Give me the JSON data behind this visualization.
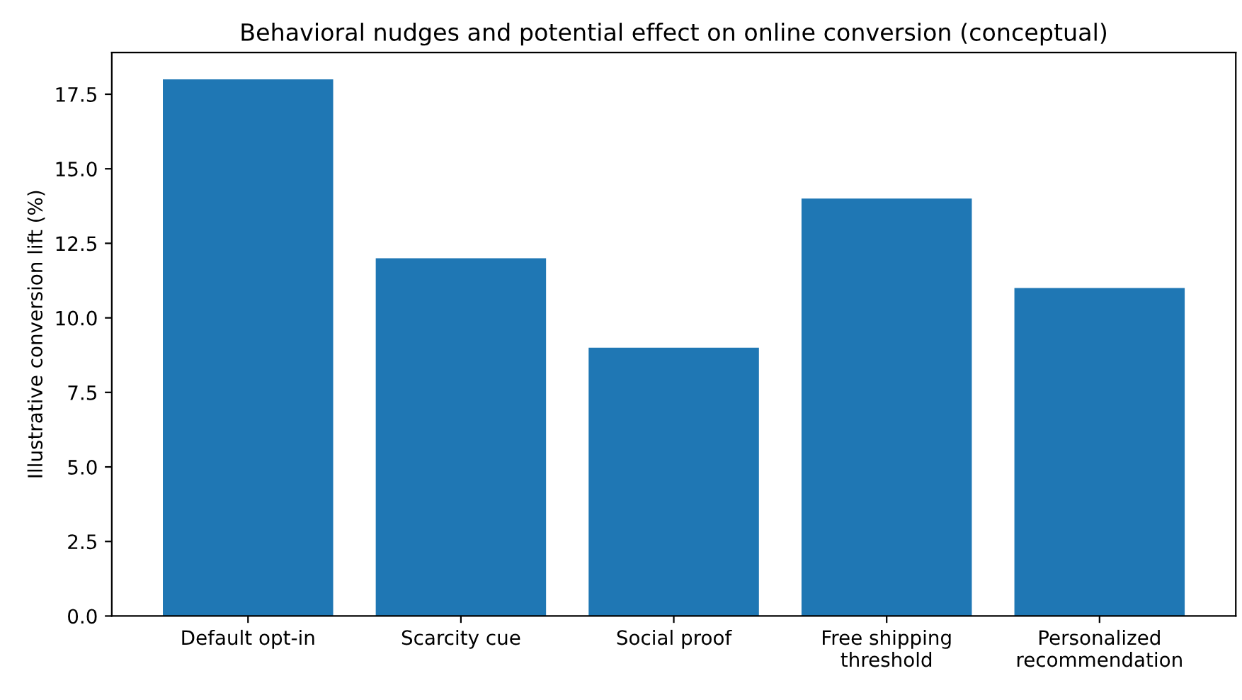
{
  "chart_data": {
    "type": "bar",
    "title": "Behavioral nudges and potential effect on online conversion (conceptual)",
    "ylabel": "Illustrative conversion lift (%)",
    "categories": [
      "Default opt-in",
      "Scarcity cue",
      "Social proof",
      "Free shipping\nthreshold",
      "Personalized\nrecommendation"
    ],
    "values": [
      18,
      12,
      9,
      14,
      11
    ],
    "color": "#1f77b4",
    "ylim": [
      0,
      18.9
    ],
    "yticks": [
      {
        "value": 0,
        "label": "0.0"
      },
      {
        "value": 2.5,
        "label": "2.5"
      },
      {
        "value": 5,
        "label": "5.0"
      },
      {
        "value": 7.5,
        "label": "7.5"
      },
      {
        "value": 10,
        "label": "10.0"
      },
      {
        "value": 12.5,
        "label": "12.5"
      },
      {
        "value": 15,
        "label": "15.0"
      },
      {
        "value": 17.5,
        "label": "17.5"
      }
    ],
    "grid": false
  }
}
